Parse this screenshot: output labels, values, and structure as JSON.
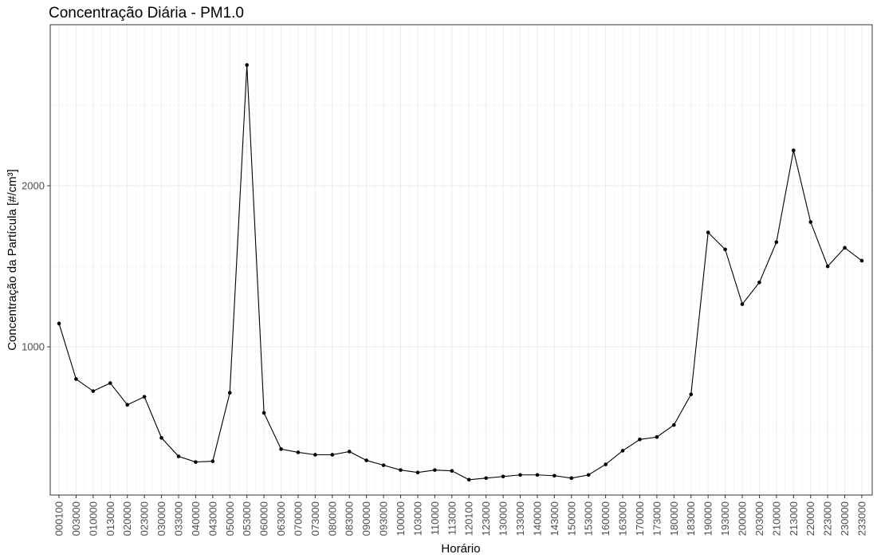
{
  "chart_data": {
    "type": "line",
    "title": "Concentração Diária - PM1.0",
    "xlabel": "Horário",
    "ylabel": "Concentração da Partícula [#/cm³]",
    "grid": true,
    "legend": "none",
    "ylim": [
      80,
      3000
    ],
    "yticks": [
      1000,
      2000
    ],
    "categories": [
      "000100",
      "003000",
      "010000",
      "013000",
      "020000",
      "023000",
      "030000",
      "033000",
      "040000",
      "043000",
      "050000",
      "053000",
      "060000",
      "063000",
      "070000",
      "073000",
      "080000",
      "083000",
      "090000",
      "093000",
      "100000",
      "103000",
      "110000",
      "113000",
      "120100",
      "123000",
      "130000",
      "133000",
      "140000",
      "143000",
      "150000",
      "153000",
      "160000",
      "163000",
      "170000",
      "173000",
      "180000",
      "183000",
      "190000",
      "193000",
      "200000",
      "203000",
      "210000",
      "213000",
      "220000",
      "223000",
      "230000",
      "233000"
    ],
    "series": [
      {
        "color": "#000000",
        "values": [
          1145,
          800,
          725,
          775,
          640,
          690,
          435,
          320,
          285,
          290,
          715,
          2750,
          590,
          365,
          345,
          330,
          330,
          350,
          295,
          265,
          235,
          220,
          235,
          230,
          175,
          185,
          195,
          205,
          205,
          200,
          185,
          205,
          270,
          355,
          425,
          440,
          515,
          705,
          1710,
          1605,
          1265,
          1400,
          1650,
          2220,
          1775,
          1500,
          1615,
          1535
        ]
      }
    ]
  }
}
